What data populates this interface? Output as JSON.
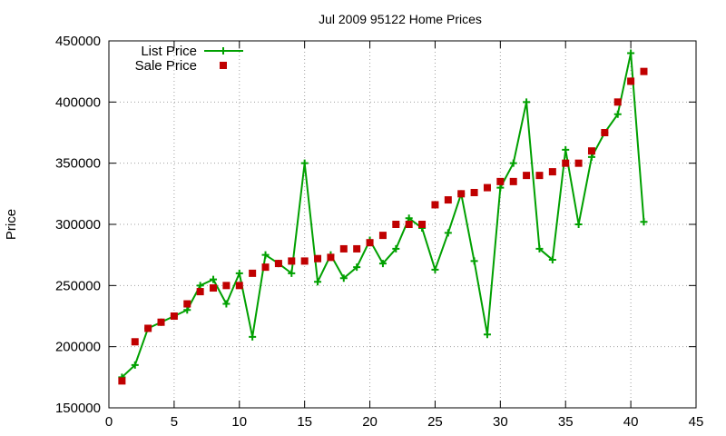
{
  "chart_data": {
    "type": "line",
    "title": "Jul 2009 95122 Home Prices",
    "xlabel": "",
    "ylabel": "Price",
    "xlim": [
      0,
      45
    ],
    "ylim": [
      150000,
      450000
    ],
    "xticks": [
      0,
      5,
      10,
      15,
      20,
      25,
      30,
      35,
      40,
      45
    ],
    "yticks": [
      150000,
      200000,
      250000,
      300000,
      350000,
      400000,
      450000
    ],
    "grid": true,
    "legend_position": "top-left",
    "series": [
      {
        "name": "List Price",
        "style": "lines+points",
        "marker": "plus",
        "color": "#00a000",
        "points": [
          [
            1,
            175000
          ],
          [
            2,
            185000
          ],
          [
            3,
            215000
          ],
          [
            4,
            220000
          ],
          [
            5,
            225000
          ],
          [
            6,
            230000
          ],
          [
            7,
            250000
          ],
          [
            8,
            255000
          ],
          [
            9,
            235000
          ],
          [
            10,
            260000
          ],
          [
            11,
            208000
          ],
          [
            12,
            275000
          ],
          [
            13,
            268000
          ],
          [
            14,
            260000
          ],
          [
            15,
            350000
          ],
          [
            16,
            253000
          ],
          [
            17,
            275000
          ],
          [
            18,
            256000
          ],
          [
            19,
            265000
          ],
          [
            20,
            287000
          ],
          [
            21,
            268000
          ],
          [
            22,
            280000
          ],
          [
            23,
            305000
          ],
          [
            24,
            297000
          ],
          [
            25,
            263000
          ],
          [
            26,
            293000
          ],
          [
            27,
            325000
          ],
          [
            28,
            270000
          ],
          [
            29,
            210000
          ],
          [
            30,
            330000
          ],
          [
            31,
            350000
          ],
          [
            32,
            400000
          ],
          [
            33,
            280000
          ],
          [
            34,
            271000
          ],
          [
            35,
            361000
          ],
          [
            36,
            300000
          ],
          [
            37,
            355000
          ],
          [
            38,
            375000
          ],
          [
            39,
            390000
          ],
          [
            40,
            440000
          ],
          [
            41,
            302000
          ]
        ]
      },
      {
        "name": "Sale Price",
        "style": "points",
        "marker": "square",
        "color": "#c00000",
        "points": [
          [
            1,
            172000
          ],
          [
            2,
            204000
          ],
          [
            3,
            215000
          ],
          [
            4,
            220000
          ],
          [
            5,
            225000
          ],
          [
            6,
            235000
          ],
          [
            7,
            245000
          ],
          [
            8,
            248000
          ],
          [
            9,
            250000
          ],
          [
            10,
            250000
          ],
          [
            11,
            260000
          ],
          [
            12,
            265000
          ],
          [
            13,
            268000
          ],
          [
            14,
            270000
          ],
          [
            15,
            270000
          ],
          [
            16,
            272000
          ],
          [
            17,
            273000
          ],
          [
            18,
            280000
          ],
          [
            19,
            280000
          ],
          [
            20,
            285000
          ],
          [
            21,
            291000
          ],
          [
            22,
            300000
          ],
          [
            23,
            300000
          ],
          [
            24,
            300000
          ],
          [
            25,
            316000
          ],
          [
            26,
            320000
          ],
          [
            27,
            325000
          ],
          [
            28,
            326000
          ],
          [
            29,
            330000
          ],
          [
            30,
            335000
          ],
          [
            31,
            335000
          ],
          [
            32,
            340000
          ],
          [
            33,
            340000
          ],
          [
            34,
            343000
          ],
          [
            35,
            350000
          ],
          [
            36,
            350000
          ],
          [
            37,
            360000
          ],
          [
            38,
            375000
          ],
          [
            39,
            400000
          ],
          [
            40,
            417000
          ],
          [
            41,
            425000
          ]
        ]
      }
    ]
  }
}
